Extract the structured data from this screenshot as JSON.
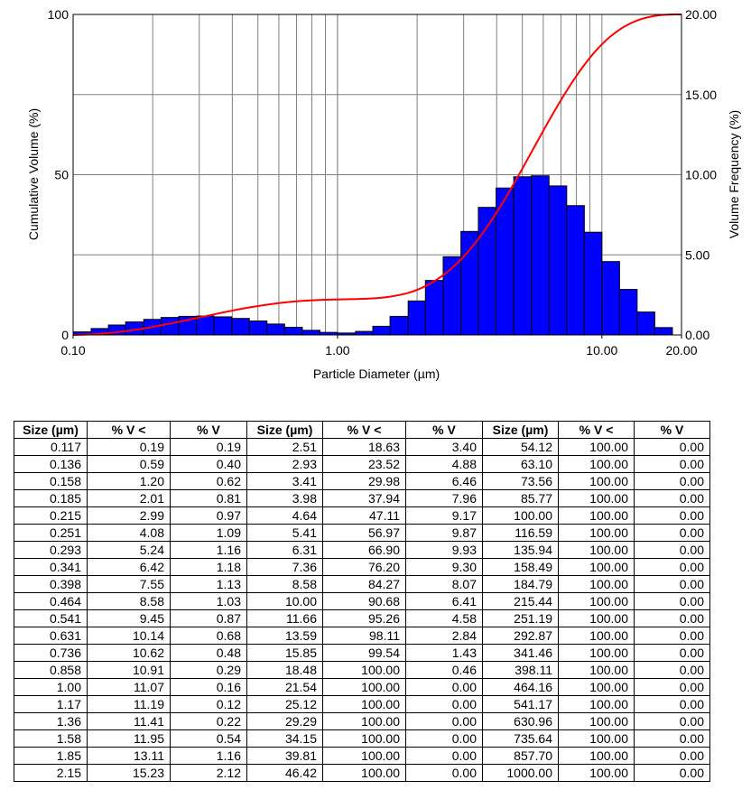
{
  "chart_data": {
    "type": "bar+line",
    "xlabel": "Particle Diameter (µm)",
    "ylabel_left": "Cumulative Volume (%)",
    "ylabel_right": "Volume Frequency (%)",
    "x_scale": "log",
    "xlim": [
      0.1,
      20.0
    ],
    "ylim_left": [
      0,
      100
    ],
    "ylim_right": [
      0,
      20.0
    ],
    "grid": true,
    "x_tick_labels": [
      {
        "value": 0.1,
        "label": "0.10"
      },
      {
        "value": 1.0,
        "label": "1.00"
      },
      {
        "value": 10.0,
        "label": "10.00"
      },
      {
        "value": 20.0,
        "label": "20.00"
      }
    ],
    "y_left_ticks": [
      {
        "value": 0,
        "label": "0"
      },
      {
        "value": 50,
        "label": "50"
      },
      {
        "value": 100,
        "label": "100"
      }
    ],
    "y_right_ticks": [
      {
        "value": 0,
        "label": "0.00"
      },
      {
        "value": 5,
        "label": "5.00"
      },
      {
        "value": 10,
        "label": "10.00"
      },
      {
        "value": 15,
        "label": "15.00"
      },
      {
        "value": 20,
        "label": "20.00"
      }
    ],
    "series": [
      {
        "kind": "bar",
        "axis": "right",
        "color": "#0000ff",
        "bins": [
          [
            0.1,
            0.117,
            0.19
          ],
          [
            0.117,
            0.136,
            0.4
          ],
          [
            0.136,
            0.158,
            0.62
          ],
          [
            0.158,
            0.185,
            0.81
          ],
          [
            0.185,
            0.215,
            0.97
          ],
          [
            0.215,
            0.251,
            1.09
          ],
          [
            0.251,
            0.293,
            1.16
          ],
          [
            0.293,
            0.341,
            1.18
          ],
          [
            0.341,
            0.398,
            1.13
          ],
          [
            0.398,
            0.464,
            1.03
          ],
          [
            0.464,
            0.541,
            0.87
          ],
          [
            0.541,
            0.631,
            0.68
          ],
          [
            0.631,
            0.736,
            0.48
          ],
          [
            0.736,
            0.858,
            0.29
          ],
          [
            0.858,
            1.0,
            0.16
          ],
          [
            1.0,
            1.17,
            0.12
          ],
          [
            1.17,
            1.36,
            0.22
          ],
          [
            1.36,
            1.58,
            0.54
          ],
          [
            1.58,
            1.85,
            1.16
          ],
          [
            1.85,
            2.15,
            2.12
          ],
          [
            2.15,
            2.51,
            3.4
          ],
          [
            2.51,
            2.93,
            4.88
          ],
          [
            2.93,
            3.41,
            6.46
          ],
          [
            3.41,
            3.98,
            7.96
          ],
          [
            3.98,
            4.64,
            9.17
          ],
          [
            4.64,
            5.41,
            9.87
          ],
          [
            5.41,
            6.31,
            9.93
          ],
          [
            6.31,
            7.36,
            9.3
          ],
          [
            7.36,
            8.58,
            8.07
          ],
          [
            8.58,
            10.0,
            6.41
          ],
          [
            10.0,
            11.66,
            4.58
          ],
          [
            11.66,
            13.59,
            2.84
          ],
          [
            13.59,
            15.85,
            1.43
          ],
          [
            15.85,
            18.48,
            0.46
          ]
        ]
      },
      {
        "kind": "line",
        "axis": "left",
        "color": "#ff0000",
        "points": [
          [
            0.1,
            0
          ],
          [
            0.117,
            0.19
          ],
          [
            0.136,
            0.59
          ],
          [
            0.158,
            1.2
          ],
          [
            0.185,
            2.01
          ],
          [
            0.215,
            2.99
          ],
          [
            0.251,
            4.08
          ],
          [
            0.293,
            5.24
          ],
          [
            0.341,
            6.42
          ],
          [
            0.398,
            7.55
          ],
          [
            0.464,
            8.58
          ],
          [
            0.541,
            9.45
          ],
          [
            0.631,
            10.14
          ],
          [
            0.736,
            10.62
          ],
          [
            0.858,
            10.91
          ],
          [
            1.0,
            11.07
          ],
          [
            1.17,
            11.19
          ],
          [
            1.36,
            11.41
          ],
          [
            1.58,
            11.95
          ],
          [
            1.85,
            13.11
          ],
          [
            2.15,
            15.23
          ],
          [
            2.51,
            18.63
          ],
          [
            2.93,
            23.52
          ],
          [
            3.41,
            29.98
          ],
          [
            3.98,
            37.94
          ],
          [
            4.64,
            47.11
          ],
          [
            5.41,
            56.97
          ],
          [
            6.31,
            66.9
          ],
          [
            7.36,
            76.2
          ],
          [
            8.58,
            84.27
          ],
          [
            10.0,
            90.68
          ],
          [
            11.66,
            95.26
          ],
          [
            13.59,
            98.11
          ],
          [
            15.85,
            99.54
          ],
          [
            18.48,
            100.0
          ],
          [
            20.0,
            100.0
          ]
        ]
      }
    ]
  },
  "table": {
    "headers": [
      "Size (µm)",
      "% V <",
      "% V",
      "Size (µm)",
      "% V <",
      "% V",
      "Size (µm)",
      "% V <",
      "% V"
    ],
    "rows": [
      [
        "0.117",
        "0.19",
        "0.19",
        "2.51",
        "18.63",
        "3.40",
        "54.12",
        "100.00",
        "0.00"
      ],
      [
        "0.136",
        "0.59",
        "0.40",
        "2.93",
        "23.52",
        "4.88",
        "63.10",
        "100.00",
        "0.00"
      ],
      [
        "0.158",
        "1.20",
        "0.62",
        "3.41",
        "29.98",
        "6.46",
        "73.56",
        "100.00",
        "0.00"
      ],
      [
        "0.185",
        "2.01",
        "0.81",
        "3.98",
        "37.94",
        "7.96",
        "85.77",
        "100.00",
        "0.00"
      ],
      [
        "0.215",
        "2.99",
        "0.97",
        "4.64",
        "47.11",
        "9.17",
        "100.00",
        "100.00",
        "0.00"
      ],
      [
        "0.251",
        "4.08",
        "1.09",
        "5.41",
        "56.97",
        "9.87",
        "116.59",
        "100.00",
        "0.00"
      ],
      [
        "0.293",
        "5.24",
        "1.16",
        "6.31",
        "66.90",
        "9.93",
        "135.94",
        "100.00",
        "0.00"
      ],
      [
        "0.341",
        "6.42",
        "1.18",
        "7.36",
        "76.20",
        "9.30",
        "158.49",
        "100.00",
        "0.00"
      ],
      [
        "0.398",
        "7.55",
        "1.13",
        "8.58",
        "84.27",
        "8.07",
        "184.79",
        "100.00",
        "0.00"
      ],
      [
        "0.464",
        "8.58",
        "1.03",
        "10.00",
        "90.68",
        "6.41",
        "215.44",
        "100.00",
        "0.00"
      ],
      [
        "0.541",
        "9.45",
        "0.87",
        "11.66",
        "95.26",
        "4.58",
        "251.19",
        "100.00",
        "0.00"
      ],
      [
        "0.631",
        "10.14",
        "0.68",
        "13.59",
        "98.11",
        "2.84",
        "292.87",
        "100.00",
        "0.00"
      ],
      [
        "0.736",
        "10.62",
        "0.48",
        "15.85",
        "99.54",
        "1.43",
        "341.46",
        "100.00",
        "0.00"
      ],
      [
        "0.858",
        "10.91",
        "0.29",
        "18.48",
        "100.00",
        "0.46",
        "398.11",
        "100.00",
        "0.00"
      ],
      [
        "1.00",
        "11.07",
        "0.16",
        "21.54",
        "100.00",
        "0.00",
        "464.16",
        "100.00",
        "0.00"
      ],
      [
        "1.17",
        "11.19",
        "0.12",
        "25.12",
        "100.00",
        "0.00",
        "541.17",
        "100.00",
        "0.00"
      ],
      [
        "1.36",
        "11.41",
        "0.22",
        "29.29",
        "100.00",
        "0.00",
        "630.96",
        "100.00",
        "0.00"
      ],
      [
        "1.58",
        "11.95",
        "0.54",
        "34.15",
        "100.00",
        "0.00",
        "735.64",
        "100.00",
        "0.00"
      ],
      [
        "1.85",
        "13.11",
        "1.16",
        "39.81",
        "100.00",
        "0.00",
        "857.70",
        "100.00",
        "0.00"
      ],
      [
        "2.15",
        "15.23",
        "2.12",
        "46.42",
        "100.00",
        "0.00",
        "1000.00",
        "100.00",
        "0.00"
      ]
    ]
  }
}
